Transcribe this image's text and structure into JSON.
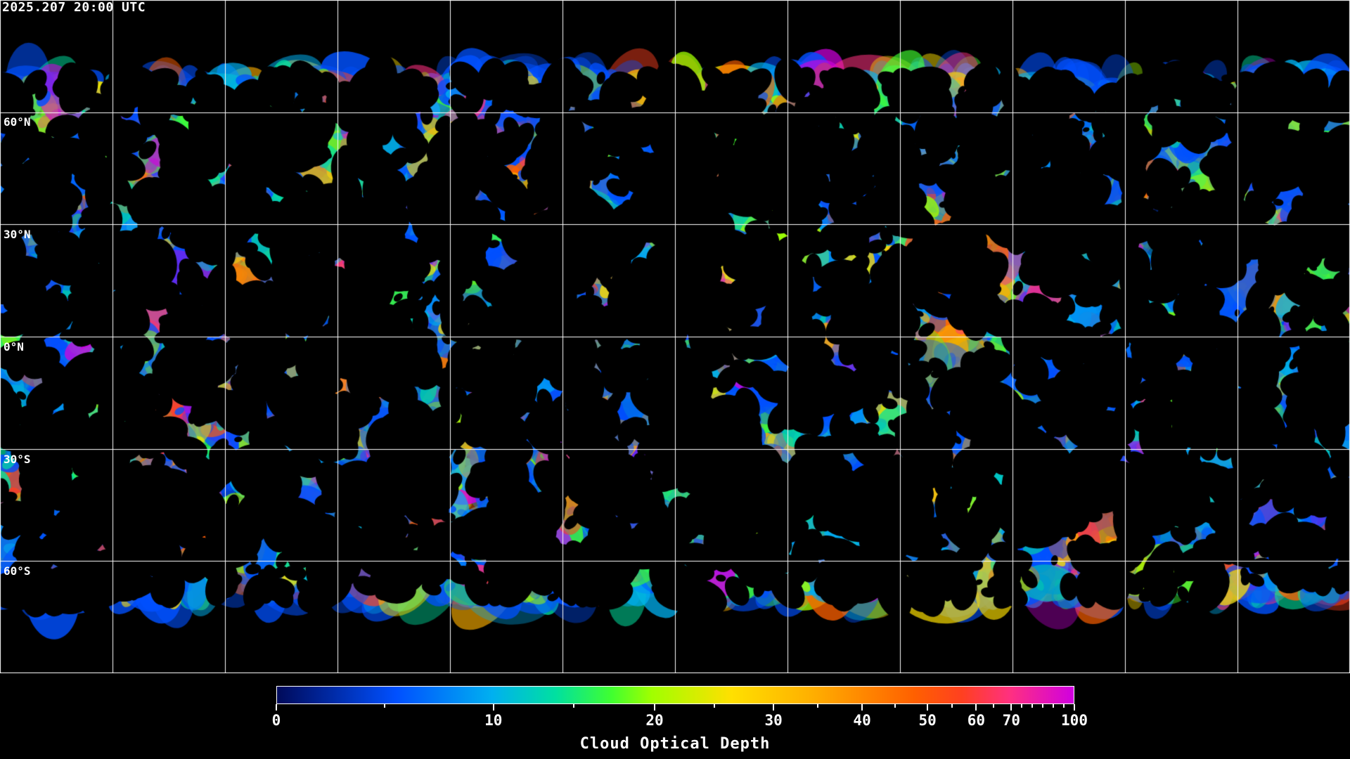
{
  "header": {
    "timestamp": "2025.207 20:00 UTC"
  },
  "map": {
    "projection": "equirectangular",
    "gridline_spacing_degrees": 30,
    "latitude_labels": [
      "60°N",
      "30°N",
      "0°N",
      "30°S",
      "60°S"
    ],
    "gridline_color": "#ffffff",
    "background_color": "#000000"
  },
  "colorbar": {
    "title": "Cloud Optical Depth",
    "min": 0,
    "max": 100,
    "labeled_ticks": [
      "0",
      "10",
      "20",
      "30",
      "40",
      "50",
      "60",
      "70",
      "100"
    ],
    "minor_ticks": [
      5,
      15,
      25,
      35,
      45,
      55,
      65,
      75,
      80,
      85,
      90,
      95
    ],
    "colors": [
      "#000a5a",
      "#0050ff",
      "#00b0f0",
      "#00e0a0",
      "#40ff30",
      "#a0ff00",
      "#ffe000",
      "#ffb000",
      "#ff6000",
      "#ff4020",
      "#ff3080",
      "#d000e0"
    ]
  }
}
